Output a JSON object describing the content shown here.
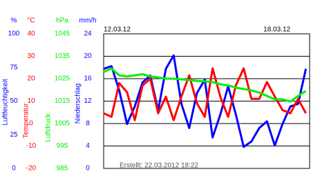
{
  "chart_data": {
    "type": "line",
    "annotation": "Erstellt: 22.03.2012 18:22",
    "xlim": [
      0,
      6.62
    ],
    "xticks": [
      {
        "value": 0,
        "label": "12.03.12"
      },
      {
        "value": 6,
        "label": "18.03.12"
      }
    ],
    "grid": true,
    "y_axes": [
      {
        "unit": "%",
        "label": "Luftfeuchtigkeit",
        "color": "#0000ff",
        "ylim": [
          0,
          100
        ],
        "yticks": [
          100,
          75,
          50,
          25,
          0
        ]
      },
      {
        "unit": "°C",
        "label": "Temperatur",
        "color": "#ff0000",
        "ylim": [
          -20,
          40
        ],
        "yticks": [
          40,
          30,
          20,
          10,
          0,
          -10,
          -20
        ]
      },
      {
        "unit": "hPa",
        "label": "Luftdruck",
        "color": "#00ee00",
        "ylim": [
          985,
          1045
        ],
        "yticks": [
          1045,
          1035,
          1025,
          1015,
          1005,
          995,
          985
        ]
      },
      {
        "unit": "mm/h",
        "label": "Niederschlag",
        "color": "#0000ff",
        "ylim": [
          0,
          24
        ],
        "yticks": [
          24,
          20,
          16,
          12,
          8,
          4,
          0
        ]
      }
    ],
    "x": [
      0,
      0.25,
      0.5,
      0.75,
      1,
      1.25,
      1.5,
      1.75,
      2,
      2.25,
      2.5,
      2.75,
      3,
      3.25,
      3.5,
      3.75,
      4,
      4.25,
      4.5,
      4.75,
      5,
      5.25,
      5.5,
      5.75,
      6,
      6.25,
      6.5
    ],
    "series": [
      {
        "axis": 0,
        "color": "#0000ff",
        "values": [
          74,
          76,
          58,
          33,
          46,
          64,
          69,
          43,
          74,
          84,
          48,
          30,
          56,
          66,
          23,
          40,
          61,
          40,
          16,
          20,
          30,
          35,
          17,
          33,
          46,
          48,
          74
        ]
      },
      {
        "axis": 1,
        "color": "#ff0000",
        "values": [
          4.6,
          3,
          18,
          14,
          1.5,
          17,
          20,
          4.6,
          12,
          1.5,
          12,
          21.5,
          9,
          3,
          24.6,
          12,
          3,
          17,
          24.6,
          11,
          11,
          18.5,
          12,
          6,
          4.6,
          11,
          4.6
        ]
      },
      {
        "axis": 2,
        "color": "#00ee00",
        "values": [
          1028,
          1029.6,
          1026.5,
          1026,
          1026.5,
          1027,
          1026,
          1025.6,
          1025,
          1025,
          1024.7,
          1024.4,
          1024,
          1023.8,
          1023.5,
          1022.5,
          1022,
          1021,
          1020.4,
          1019.8,
          1018.8,
          1017.3,
          1015.8,
          1015.8,
          1014.8,
          1017.3,
          1019.5
        ]
      }
    ]
  }
}
